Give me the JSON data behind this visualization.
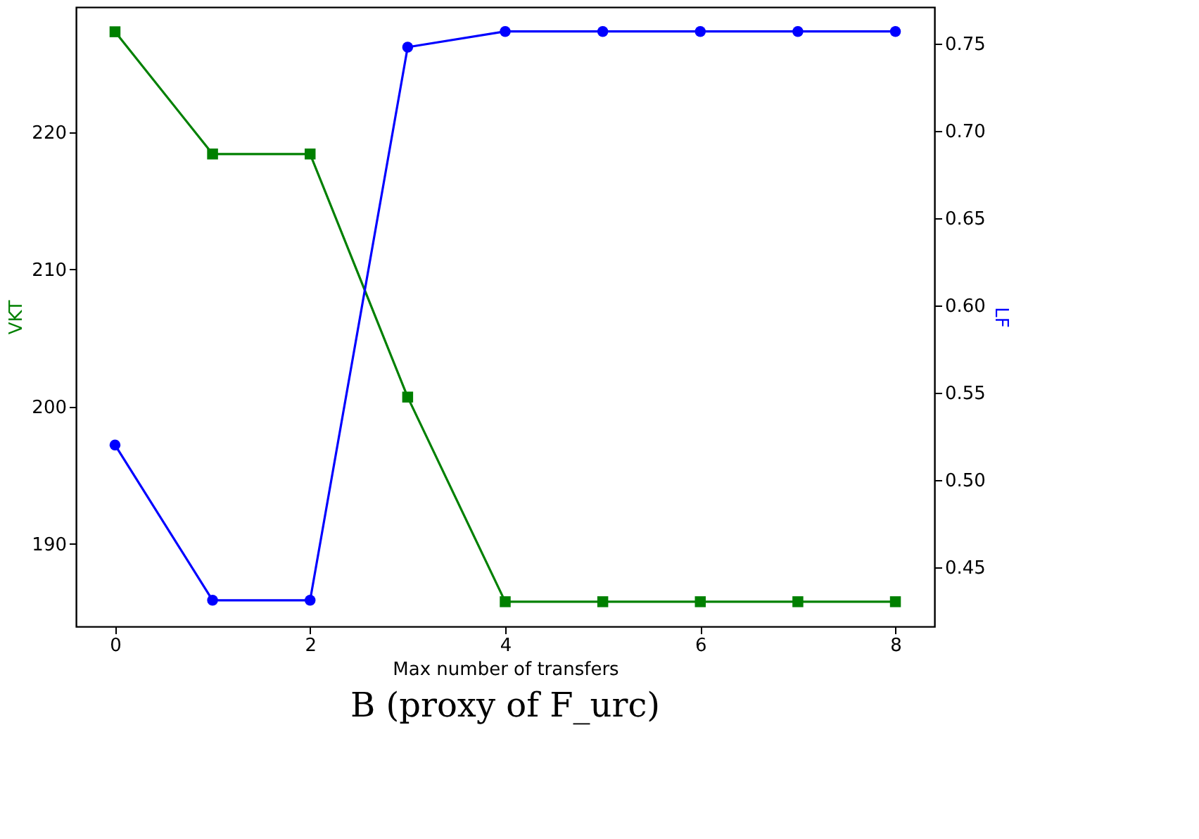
{
  "chart_data": {
    "type": "line",
    "title": "B (proxy of F_urc)",
    "xlabel": "Max number of transfers",
    "ylabel": "VKT",
    "y2label": "LF",
    "x": [
      0,
      1,
      2,
      3,
      4,
      5,
      6,
      7,
      8
    ],
    "series": [
      {
        "color": "#008000",
        "marker": "square",
        "values": [
          227.3,
          218.4,
          218.4,
          200.7,
          185.8,
          185.8,
          185.8,
          185.8,
          185.8
        ]
      },
      {
        "color": "#0000ff",
        "marker": "circle",
        "axis": "y2",
        "values": [
          0.52,
          0.431,
          0.431,
          0.748,
          0.757,
          0.757,
          0.757,
          0.757,
          0.757
        ]
      }
    ],
    "xlim": [
      -0.4,
      8.4
    ],
    "xticks": [
      0,
      2,
      4,
      6,
      8
    ],
    "ylim": [
      184,
      229.1
    ],
    "yticks": [
      190,
      200,
      210,
      220
    ],
    "y2lim": [
      0.416,
      0.771
    ],
    "y2ticks": [
      0.45,
      {
        "value": 0.5,
        "label": "0.50"
      },
      0.55,
      {
        "value": 0.6,
        "label": "0.60"
      },
      0.65,
      {
        "value": 0.7,
        "label": "0.70"
      },
      0.75
    ],
    "grid": false,
    "line_style": "solid"
  }
}
